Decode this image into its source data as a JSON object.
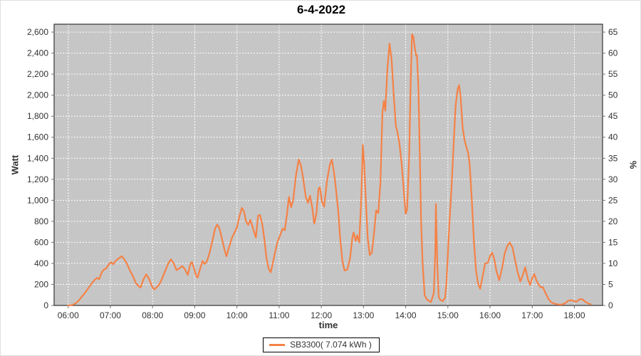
{
  "title": "6-4-2022",
  "axis_labels": {
    "left": "Watt",
    "right": "%",
    "bottom": "time"
  },
  "legend": {
    "series_label": "SB3300( 7.074 kWh )"
  },
  "colors": {
    "series": "#f58246",
    "plot_background": "#c6c6c6",
    "gridline": "#ffffff",
    "plot_border": "#333333",
    "tick_mark": "#777777",
    "tick_text": "#333333",
    "title_text": "#000000"
  },
  "chart_data": {
    "type": "line",
    "title": "6-4-2022",
    "xlabel": "time",
    "ylabel_left": "Watt",
    "ylabel_right": "%",
    "legend_position": "bottom-center",
    "grid": "white dashed on gray",
    "x_tick_labels": [
      "06:00",
      "07:00",
      "08:00",
      "09:00",
      "10:00",
      "11:00",
      "12:00",
      "13:00",
      "14:00",
      "15:00",
      "16:00",
      "17:00",
      "18:00"
    ],
    "x_tick_minutes": [
      360,
      420,
      480,
      540,
      600,
      660,
      720,
      780,
      840,
      900,
      960,
      1020,
      1080
    ],
    "x_range_minutes": [
      340,
      1120
    ],
    "y_left_tick_labels": [
      "0",
      "200",
      "400",
      "600",
      "800",
      "1,000",
      "1,200",
      "1,400",
      "1,600",
      "1,800",
      "2,000",
      "2,200",
      "2,400",
      "2,600"
    ],
    "y_left_tick_values": [
      0,
      200,
      400,
      600,
      800,
      1000,
      1200,
      1400,
      1600,
      1800,
      2000,
      2200,
      2400,
      2600
    ],
    "y_range_watt": [
      0,
      2675
    ],
    "y_right_tick_labels": [
      "0",
      "5",
      "10",
      "15",
      "20",
      "25",
      "30",
      "35",
      "40",
      "45",
      "50",
      "55",
      "60",
      "65"
    ],
    "y_right_tick_values": [
      0,
      5,
      10,
      15,
      20,
      25,
      30,
      35,
      40,
      45,
      50,
      55,
      60,
      65
    ],
    "right_axis_watt_per_percent": 40,
    "series": [
      {
        "name": "SB3300",
        "legend_label": "SB3300( 7.074 kWh )",
        "color": "#f58246",
        "points": [
          [
            "06:00",
            0
          ],
          [
            "06:04",
            2
          ],
          [
            "06:08",
            10
          ],
          [
            "06:12",
            28
          ],
          [
            "06:16",
            55
          ],
          [
            "06:20",
            88
          ],
          [
            "06:25",
            130
          ],
          [
            "06:30",
            178
          ],
          [
            "06:34",
            215
          ],
          [
            "06:38",
            245
          ],
          [
            "06:41",
            262
          ],
          [
            "06:44",
            250
          ],
          [
            "06:48",
            318
          ],
          [
            "06:51",
            342
          ],
          [
            "06:54",
            352
          ],
          [
            "06:58",
            392
          ],
          [
            "07:01",
            412
          ],
          [
            "07:04",
            392
          ],
          [
            "07:08",
            428
          ],
          [
            "07:12",
            448
          ],
          [
            "07:16",
            468
          ],
          [
            "07:20",
            438
          ],
          [
            "07:24",
            390
          ],
          [
            "07:28",
            330
          ],
          [
            "07:32",
            280
          ],
          [
            "07:36",
            215
          ],
          [
            "07:40",
            185
          ],
          [
            "07:43",
            170
          ],
          [
            "07:47",
            248
          ],
          [
            "07:51",
            295
          ],
          [
            "07:55",
            252
          ],
          [
            "07:59",
            185
          ],
          [
            "08:02",
            152
          ],
          [
            "08:06",
            172
          ],
          [
            "08:10",
            205
          ],
          [
            "08:14",
            262
          ],
          [
            "08:18",
            330
          ],
          [
            "08:22",
            395
          ],
          [
            "08:26",
            438
          ],
          [
            "08:30",
            402
          ],
          [
            "08:34",
            335
          ],
          [
            "08:38",
            352
          ],
          [
            "08:42",
            375
          ],
          [
            "08:46",
            345
          ],
          [
            "08:50",
            290
          ],
          [
            "08:54",
            400
          ],
          [
            "08:56",
            412
          ],
          [
            "08:59",
            355
          ],
          [
            "09:02",
            282
          ],
          [
            "09:04",
            265
          ],
          [
            "09:08",
            355
          ],
          [
            "09:11",
            422
          ],
          [
            "09:14",
            395
          ],
          [
            "09:17",
            415
          ],
          [
            "09:21",
            498
          ],
          [
            "09:25",
            610
          ],
          [
            "09:29",
            732
          ],
          [
            "09:32",
            770
          ],
          [
            "09:35",
            735
          ],
          [
            "09:38",
            655
          ],
          [
            "09:42",
            540
          ],
          [
            "09:45",
            468
          ],
          [
            "09:49",
            558
          ],
          [
            "09:53",
            645
          ],
          [
            "09:57",
            700
          ],
          [
            "10:00",
            742
          ],
          [
            "10:04",
            858
          ],
          [
            "10:07",
            928
          ],
          [
            "10:10",
            895
          ],
          [
            "10:13",
            800
          ],
          [
            "10:16",
            765
          ],
          [
            "10:19",
            815
          ],
          [
            "10:22",
            752
          ],
          [
            "10:25",
            688
          ],
          [
            "10:27",
            645
          ],
          [
            "10:30",
            852
          ],
          [
            "10:33",
            860
          ],
          [
            "10:36",
            775
          ],
          [
            "10:39",
            630
          ],
          [
            "10:42",
            450
          ],
          [
            "10:45",
            352
          ],
          [
            "10:48",
            315
          ],
          [
            "10:51",
            400
          ],
          [
            "10:54",
            500
          ],
          [
            "10:58",
            610
          ],
          [
            "11:01",
            660
          ],
          [
            "11:05",
            730
          ],
          [
            "11:08",
            715
          ],
          [
            "11:11",
            860
          ],
          [
            "11:14",
            1032
          ],
          [
            "11:17",
            935
          ],
          [
            "11:20",
            1000
          ],
          [
            "11:24",
            1240
          ],
          [
            "11:28",
            1388
          ],
          [
            "11:31",
            1330
          ],
          [
            "11:34",
            1215
          ],
          [
            "11:38",
            1030
          ],
          [
            "11:41",
            975
          ],
          [
            "11:44",
            1045
          ],
          [
            "11:47",
            935
          ],
          [
            "11:50",
            778
          ],
          [
            "11:53",
            872
          ],
          [
            "11:56",
            1110
          ],
          [
            "11:58",
            1124
          ],
          [
            "12:01",
            985
          ],
          [
            "12:04",
            940
          ],
          [
            "12:08",
            1180
          ],
          [
            "12:12",
            1335
          ],
          [
            "12:15",
            1388
          ],
          [
            "12:18",
            1270
          ],
          [
            "12:21",
            1095
          ],
          [
            "12:24",
            905
          ],
          [
            "12:27",
            625
          ],
          [
            "12:30",
            425
          ],
          [
            "12:33",
            332
          ],
          [
            "12:37",
            342
          ],
          [
            "12:41",
            452
          ],
          [
            "12:44",
            640
          ],
          [
            "12:46",
            695
          ],
          [
            "12:49",
            612
          ],
          [
            "12:51",
            668
          ],
          [
            "12:54",
            600
          ],
          [
            "12:57",
            1050
          ],
          [
            "12:59",
            1528
          ],
          [
            "13:01",
            1350
          ],
          [
            "13:03",
            1050
          ],
          [
            "13:06",
            640
          ],
          [
            "13:09",
            478
          ],
          [
            "13:12",
            505
          ],
          [
            "13:15",
            690
          ],
          [
            "13:18",
            905
          ],
          [
            "13:21",
            878
          ],
          [
            "13:24",
            1160
          ],
          [
            "13:27",
            1840
          ],
          [
            "13:29",
            1945
          ],
          [
            "13:31",
            1852
          ],
          [
            "13:34",
            2250
          ],
          [
            "13:37",
            2490
          ],
          [
            "13:40",
            2340
          ],
          [
            "13:43",
            2005
          ],
          [
            "13:46",
            1705
          ],
          [
            "13:48",
            1660
          ],
          [
            "13:51",
            1545
          ],
          [
            "13:54",
            1365
          ],
          [
            "13:57",
            1120
          ],
          [
            "14:00",
            872
          ],
          [
            "14:02",
            912
          ],
          [
            "14:05",
            1420
          ],
          [
            "14:07",
            2095
          ],
          [
            "14:09",
            2580
          ],
          [
            "14:11",
            2555
          ],
          [
            "14:13",
            2448
          ],
          [
            "14:15",
            2372
          ],
          [
            "14:16",
            2380
          ],
          [
            "14:18",
            2085
          ],
          [
            "14:20",
            1480
          ],
          [
            "14:22",
            788
          ],
          [
            "14:24",
            415
          ],
          [
            "14:27",
            98
          ],
          [
            "14:30",
            58
          ],
          [
            "14:33",
            45
          ],
          [
            "14:36",
            32
          ],
          [
            "14:40",
            118
          ],
          [
            "14:42",
            500
          ],
          [
            "14:43",
            965
          ],
          [
            "14:45",
            390
          ],
          [
            "14:47",
            78
          ],
          [
            "14:50",
            48
          ],
          [
            "14:53",
            42
          ],
          [
            "14:56",
            75
          ],
          [
            "14:58",
            210
          ],
          [
            "15:00",
            480
          ],
          [
            "15:02",
            760
          ],
          [
            "15:05",
            1100
          ],
          [
            "15:08",
            1500
          ],
          [
            "15:11",
            1900
          ],
          [
            "15:14",
            2060
          ],
          [
            "15:16",
            2095
          ],
          [
            "15:18",
            1995
          ],
          [
            "15:21",
            1690
          ],
          [
            "15:24",
            1565
          ],
          [
            "15:27",
            1490
          ],
          [
            "15:29",
            1448
          ],
          [
            "15:31",
            1345
          ],
          [
            "15:34",
            1010
          ],
          [
            "15:37",
            622
          ],
          [
            "15:40",
            335
          ],
          [
            "15:43",
            205
          ],
          [
            "15:46",
            158
          ],
          [
            "15:50",
            295
          ],
          [
            "15:53",
            398
          ],
          [
            "15:57",
            408
          ],
          [
            "16:00",
            470
          ],
          [
            "16:03",
            502
          ],
          [
            "16:06",
            440
          ],
          [
            "16:09",
            330
          ],
          [
            "16:13",
            240
          ],
          [
            "16:17",
            350
          ],
          [
            "16:21",
            500
          ],
          [
            "16:25",
            572
          ],
          [
            "16:28",
            598
          ],
          [
            "16:32",
            550
          ],
          [
            "16:35",
            450
          ],
          [
            "16:39",
            322
          ],
          [
            "16:43",
            228
          ],
          [
            "16:47",
            295
          ],
          [
            "16:50",
            362
          ],
          [
            "16:54",
            245
          ],
          [
            "16:57",
            195
          ],
          [
            "17:00",
            262
          ],
          [
            "17:03",
            298
          ],
          [
            "17:06",
            238
          ],
          [
            "17:09",
            198
          ],
          [
            "17:12",
            172
          ],
          [
            "17:15",
            175
          ],
          [
            "17:19",
            118
          ],
          [
            "17:23",
            62
          ],
          [
            "17:27",
            30
          ],
          [
            "17:32",
            16
          ],
          [
            "17:37",
            9
          ],
          [
            "17:42",
            8
          ],
          [
            "17:47",
            22
          ],
          [
            "17:51",
            45
          ],
          [
            "17:55",
            50
          ],
          [
            "17:59",
            42
          ],
          [
            "18:03",
            35
          ],
          [
            "18:07",
            58
          ],
          [
            "18:11",
            60
          ],
          [
            "18:15",
            38
          ],
          [
            "18:19",
            20
          ],
          [
            "18:23",
            12
          ]
        ]
      }
    ]
  }
}
